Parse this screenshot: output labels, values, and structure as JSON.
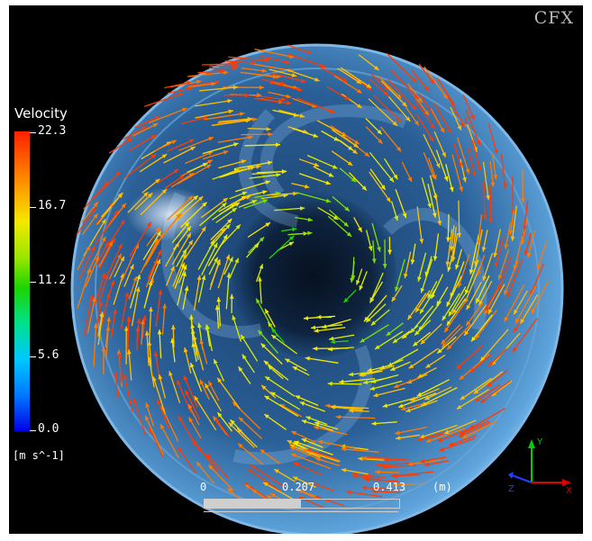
{
  "legend": {
    "title": "Velocity",
    "ticks": [
      "22.3",
      "16.7",
      "11.2",
      "5.6",
      "0.0"
    ],
    "units": "[m s^-1]"
  },
  "watermark": "CFX",
  "scale": {
    "labels": [
      "0",
      "0.207",
      "0.413"
    ],
    "unit": "(m)"
  },
  "axes": {
    "x": "X",
    "y": "Y",
    "z": "Z"
  },
  "colors": {
    "background": "#000000",
    "impeller": "#4f93cc",
    "colormap": [
      "#0000e6",
      "#00c8ff",
      "#1ed400",
      "#f4e800",
      "#ff2000"
    ]
  }
}
